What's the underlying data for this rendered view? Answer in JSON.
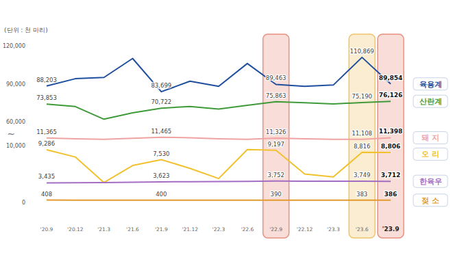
{
  "chart_data": {
    "type": "line",
    "y_label": "(단위 : 천 마리)",
    "categories": [
      "'20.9",
      "'20.12",
      "'21.3",
      "'21.6",
      "'21.9",
      "'21.12",
      "'22.3",
      "'22.6",
      "'22.9",
      "'22.12",
      "'23.3",
      "'23.6",
      "'23.9"
    ],
    "ylim": [
      0,
      120000
    ],
    "yticks": [
      0,
      {
        "value": 10000,
        "label": "10,000"
      },
      {
        "value": 60000,
        "label": "60,000"
      },
      {
        "value": 90000,
        "label": "90,000"
      },
      {
        "value": 120000,
        "label": "120,000"
      }
    ],
    "y_axis_break": "~",
    "grid": false,
    "data_labels": true,
    "marker": "none",
    "legend": "right",
    "highlights": [
      {
        "category": "'22.9",
        "color": "#e8907e"
      },
      {
        "category": "'23.6",
        "color": "#f0c46a"
      },
      {
        "category": "'23.9",
        "color": "#e8907e"
      }
    ],
    "series": [
      {
        "name": "육용계",
        "color": "#1f4e9c",
        "values": [
          88203,
          94000,
          95000,
          110000,
          83699,
          92000,
          88000,
          106000,
          89463,
          88000,
          89000,
          110869,
          89854
        ],
        "value_labels": [
          "88,203",
          null,
          null,
          null,
          "83,699",
          null,
          null,
          null,
          "89,463",
          null,
          null,
          "110,869",
          "89,854"
        ]
      },
      {
        "name": "산란계",
        "color": "#3f9a3a",
        "values": [
          73853,
          72000,
          62000,
          67000,
          70722,
          72000,
          70000,
          73000,
          75863,
          75000,
          74000,
          75190,
          76126
        ],
        "value_labels": [
          "73,853",
          null,
          null,
          null,
          "70,722",
          null,
          null,
          null,
          "75,863",
          null,
          null,
          "75,190",
          "76,126"
        ]
      },
      {
        "name": "돼 지",
        "color": "#f0a3a3",
        "values": [
          11365,
          11200,
          11100,
          11300,
          11465,
          11400,
          11200,
          11100,
          11326,
          11200,
          11100,
          11108,
          11398
        ],
        "value_labels": [
          "11,365",
          null,
          null,
          null,
          "11,465",
          null,
          null,
          null,
          "11,326",
          null,
          null,
          "11,108",
          "11,398"
        ]
      },
      {
        "name": "오 리",
        "color": "#f2c12e",
        "values": [
          9286,
          8000,
          3500,
          6500,
          7530,
          6000,
          4200,
          9300,
          9197,
          5000,
          4500,
          8816,
          8806
        ],
        "value_labels": [
          "9,286",
          null,
          null,
          null,
          "7,530",
          null,
          null,
          null,
          "9,197",
          null,
          null,
          "8,816",
          "8,806"
        ]
      },
      {
        "name": "한육우",
        "color": "#a26dc2",
        "values": [
          3435,
          3450,
          3480,
          3560,
          3623,
          3650,
          3660,
          3690,
          3752,
          3750,
          3730,
          3749,
          3712
        ],
        "value_labels": [
          "3,435",
          null,
          null,
          null,
          "3,623",
          null,
          null,
          null,
          "3,752",
          null,
          null,
          "3,749",
          "3,712"
        ]
      },
      {
        "name": "젖 소",
        "color": "#e39a2d",
        "values": [
          408,
          405,
          403,
          400,
          400,
          399,
          396,
          393,
          390,
          388,
          386,
          383,
          386
        ],
        "value_labels": [
          "408",
          null,
          null,
          null,
          "400",
          null,
          null,
          null,
          "390",
          null,
          null,
          "383",
          "386"
        ]
      }
    ]
  }
}
